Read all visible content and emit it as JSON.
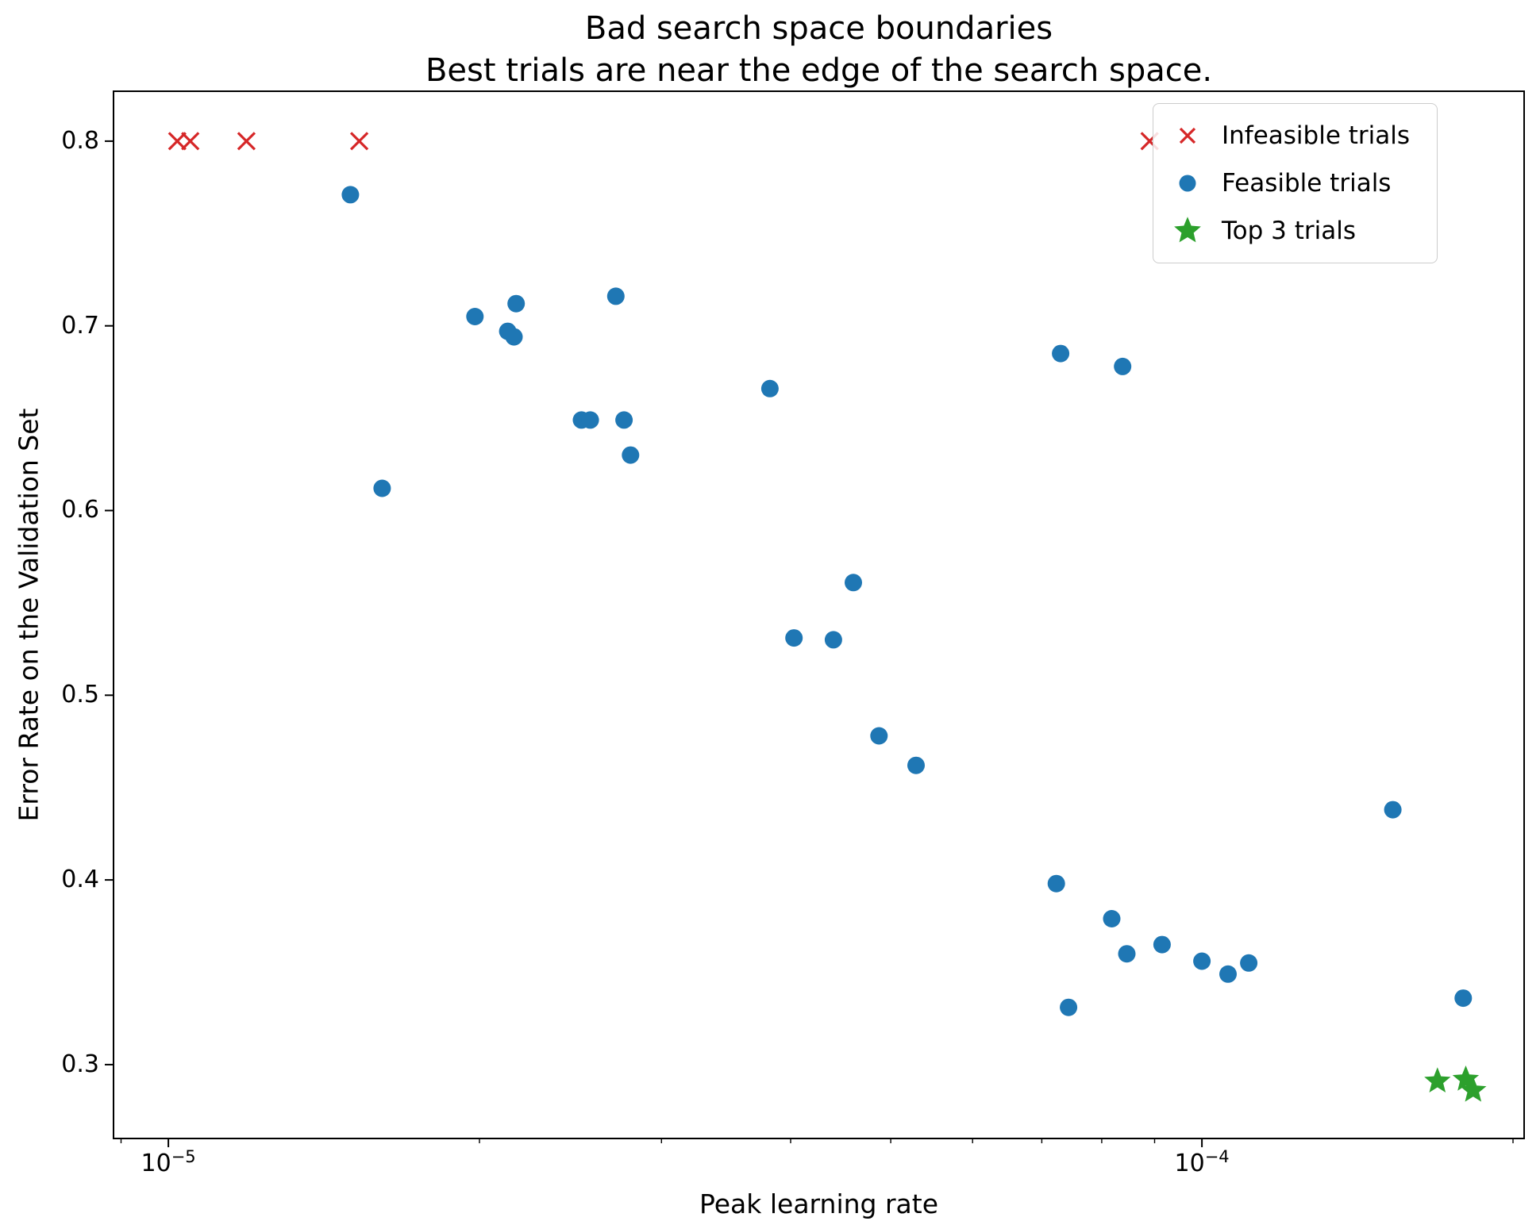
{
  "chart_data": {
    "type": "scatter",
    "title": "Bad search space boundaries",
    "subtitle": "Best trials are near the edge of the search space.",
    "xlabel": "Peak learning rate",
    "ylabel": "Error Rate on the Validation Set",
    "x_scale": "log",
    "grid": false,
    "xlim": [
      8.85e-06,
      0.000205
    ],
    "ylim": [
      0.26,
      0.827
    ],
    "x_major_ticks": [
      {
        "value": 1e-05,
        "label_base": "10",
        "label_exp": "−5"
      },
      {
        "value": 0.0001,
        "label_base": "10",
        "label_exp": "−4"
      }
    ],
    "x_minor_ticks": [
      9e-06,
      2e-05,
      3e-05,
      4e-05,
      5e-05,
      6e-05,
      7e-05,
      8e-05,
      9e-05,
      0.0002
    ],
    "y_ticks": [
      0.3,
      0.4,
      0.5,
      0.6,
      0.7,
      0.8
    ],
    "legend": {
      "position": "upper right",
      "items": [
        "Infeasible trials",
        "Feasible trials",
        "Top 3 trials"
      ]
    },
    "series": [
      {
        "name": "Infeasible trials",
        "marker": "x",
        "color": "#d62728",
        "points": [
          [
            1.02e-05,
            0.8
          ],
          [
            1.05e-05,
            0.8
          ],
          [
            1.19e-05,
            0.8
          ],
          [
            1.53e-05,
            0.8
          ],
          [
            8.9e-05,
            0.8
          ]
        ]
      },
      {
        "name": "Feasible trials",
        "marker": "circle",
        "color": "#1f77b4",
        "points": [
          [
            1.5e-05,
            0.771
          ],
          [
            1.61e-05,
            0.612
          ],
          [
            1.98e-05,
            0.705
          ],
          [
            2.13e-05,
            0.697
          ],
          [
            2.16e-05,
            0.694
          ],
          [
            2.17e-05,
            0.712
          ],
          [
            2.51e-05,
            0.649
          ],
          [
            2.56e-05,
            0.649
          ],
          [
            2.71e-05,
            0.716
          ],
          [
            2.76e-05,
            0.649
          ],
          [
            2.8e-05,
            0.63
          ],
          [
            3.82e-05,
            0.666
          ],
          [
            4.03e-05,
            0.531
          ],
          [
            4.4e-05,
            0.53
          ],
          [
            4.6e-05,
            0.561
          ],
          [
            4.87e-05,
            0.478
          ],
          [
            5.29e-05,
            0.462
          ],
          [
            7.3e-05,
            0.685
          ],
          [
            7.23e-05,
            0.398
          ],
          [
            7.43e-05,
            0.331
          ],
          [
            8.18e-05,
            0.379
          ],
          [
            8.38e-05,
            0.678
          ],
          [
            8.46e-05,
            0.36
          ],
          [
            9.15e-05,
            0.365
          ],
          [
            0.0001,
            0.356
          ],
          [
            0.000106,
            0.349
          ],
          [
            0.000111,
            0.355
          ],
          [
            0.000153,
            0.438
          ],
          [
            0.000179,
            0.336
          ]
        ]
      },
      {
        "name": "Top 3 trials",
        "marker": "star",
        "color": "#2ca02c",
        "points": [
          [
            0.000169,
            0.291
          ],
          [
            0.00018,
            0.292
          ],
          [
            0.000183,
            0.286
          ]
        ]
      }
    ]
  }
}
